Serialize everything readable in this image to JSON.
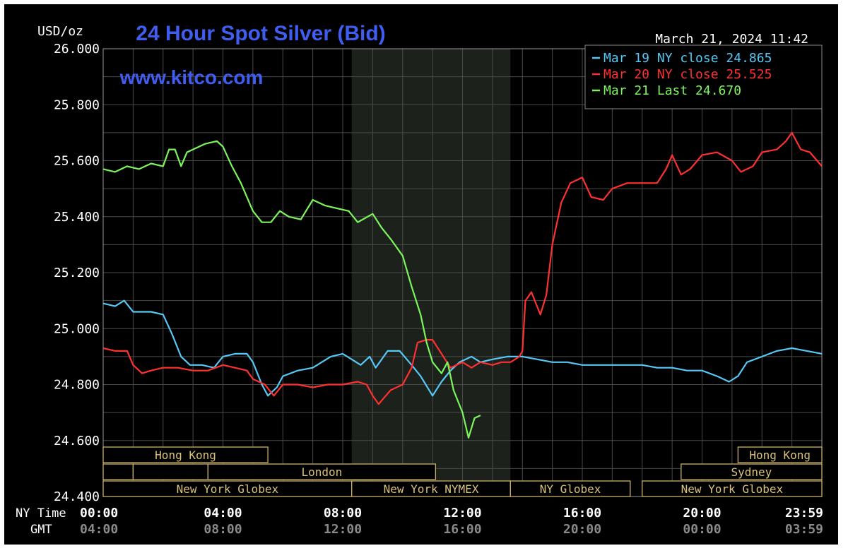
{
  "chart_data": {
    "type": "line",
    "title": "24 Hour Spot Silver (Bid)",
    "ylabel": "USD/oz",
    "timestamp": "March 21, 2024 11:42",
    "watermark": "www.kitco.com",
    "ylim": [
      24.4,
      26.0
    ],
    "xlim_hours": [
      0,
      24
    ],
    "grid": true,
    "legend_position": "top-right",
    "y_ticks": [
      {
        "value": 26.0,
        "label": "26.000"
      },
      {
        "value": 25.8,
        "label": "25.800"
      },
      {
        "value": 25.6,
        "label": "25.600"
      },
      {
        "value": 25.4,
        "label": "25.400"
      },
      {
        "value": 25.2,
        "label": "25.200"
      },
      {
        "value": 25.0,
        "label": "25.000"
      },
      {
        "value": 24.8,
        "label": "24.800"
      },
      {
        "value": 24.6,
        "label": "24.600"
      },
      {
        "value": 24.4,
        "label": "24.400"
      }
    ],
    "x_axis": {
      "row1_label": "NY Time",
      "row2_label": "GMT",
      "ticks": [
        {
          "h": 0,
          "ny": "00:00",
          "gmt": "04:00"
        },
        {
          "h": 4,
          "ny": "04:00",
          "gmt": "08:00"
        },
        {
          "h": 8,
          "ny": "08:00",
          "gmt": "12:00"
        },
        {
          "h": 12,
          "ny": "12:00",
          "gmt": "16:00"
        },
        {
          "h": 16,
          "ny": "16:00",
          "gmt": "20:00"
        },
        {
          "h": 20,
          "ny": "20:00",
          "gmt": "00:00"
        },
        {
          "h": 24,
          "ny": "23:59",
          "gmt": "03:59"
        }
      ]
    },
    "shaded_region_hours": [
      8.3,
      13.6
    ],
    "sessions": [
      {
        "label": "Hong Kong",
        "row": 0,
        "start": 0,
        "end": 5.5
      },
      {
        "label": "Hong Kong",
        "row": 0,
        "start": 21.2,
        "end": 24
      },
      {
        "label": "",
        "row": 1,
        "start": 0,
        "end": 1
      },
      {
        "label": "",
        "row": 1,
        "start": 1,
        "end": 3.5
      },
      {
        "label": "London",
        "row": 1,
        "start": 3.5,
        "end": 11.1
      },
      {
        "label": "Sydney",
        "row": 1,
        "start": 19.3,
        "end": 24
      },
      {
        "label": "New York Globex",
        "row": 2,
        "start": 0,
        "end": 8.3
      },
      {
        "label": "New York NYMEX",
        "row": 2,
        "start": 8.3,
        "end": 13.6
      },
      {
        "label": "NY Globex",
        "row": 2,
        "start": 13.6,
        "end": 17.6
      },
      {
        "label": "New York Globex",
        "row": 2,
        "start": 18.0,
        "end": 24
      }
    ],
    "series": [
      {
        "legend": "Mar 19 NY close 24.865",
        "color": "#55c8f5",
        "points": [
          [
            0,
            25.09
          ],
          [
            0.4,
            25.08
          ],
          [
            0.7,
            25.1
          ],
          [
            1.0,
            25.06
          ],
          [
            1.6,
            25.06
          ],
          [
            2.0,
            25.05
          ],
          [
            2.3,
            24.98
          ],
          [
            2.6,
            24.9
          ],
          [
            2.9,
            24.87
          ],
          [
            3.3,
            24.87
          ],
          [
            3.7,
            24.86
          ],
          [
            4.0,
            24.9
          ],
          [
            4.4,
            24.91
          ],
          [
            4.8,
            24.91
          ],
          [
            5.0,
            24.88
          ],
          [
            5.3,
            24.8
          ],
          [
            5.5,
            24.76
          ],
          [
            5.8,
            24.79
          ],
          [
            6.0,
            24.83
          ],
          [
            6.5,
            24.85
          ],
          [
            7.0,
            24.86
          ],
          [
            7.3,
            24.88
          ],
          [
            7.6,
            24.9
          ],
          [
            8.0,
            24.91
          ],
          [
            8.3,
            24.89
          ],
          [
            8.6,
            24.87
          ],
          [
            8.9,
            24.9
          ],
          [
            9.1,
            24.86
          ],
          [
            9.5,
            24.92
          ],
          [
            9.9,
            24.92
          ],
          [
            10.3,
            24.87
          ],
          [
            10.6,
            24.83
          ],
          [
            11.0,
            24.76
          ],
          [
            11.3,
            24.81
          ],
          [
            11.6,
            24.85
          ],
          [
            11.9,
            24.88
          ],
          [
            12.3,
            24.9
          ],
          [
            12.6,
            24.88
          ],
          [
            13.0,
            24.89
          ],
          [
            13.5,
            24.9
          ],
          [
            14.0,
            24.9
          ],
          [
            14.5,
            24.89
          ],
          [
            15.0,
            24.88
          ],
          [
            15.5,
            24.88
          ],
          [
            16.0,
            24.87
          ],
          [
            17.0,
            24.87
          ],
          [
            18.0,
            24.87
          ],
          [
            18.5,
            24.86
          ],
          [
            19.0,
            24.86
          ],
          [
            19.5,
            24.85
          ],
          [
            20.0,
            24.85
          ],
          [
            20.5,
            24.83
          ],
          [
            20.9,
            24.81
          ],
          [
            21.2,
            24.83
          ],
          [
            21.5,
            24.88
          ],
          [
            22.0,
            24.9
          ],
          [
            22.5,
            24.92
          ],
          [
            23.0,
            24.93
          ],
          [
            23.5,
            24.92
          ],
          [
            24.0,
            24.91
          ]
        ]
      },
      {
        "legend": "Mar 20 NY close 25.525",
        "color": "#ff3030",
        "points": [
          [
            0,
            24.93
          ],
          [
            0.4,
            24.92
          ],
          [
            0.8,
            24.92
          ],
          [
            1.0,
            24.87
          ],
          [
            1.3,
            24.84
          ],
          [
            1.6,
            24.85
          ],
          [
            2.0,
            24.86
          ],
          [
            2.5,
            24.86
          ],
          [
            3.0,
            24.85
          ],
          [
            3.5,
            24.85
          ],
          [
            4.0,
            24.87
          ],
          [
            4.4,
            24.86
          ],
          [
            4.8,
            24.85
          ],
          [
            5.0,
            24.82
          ],
          [
            5.4,
            24.8
          ],
          [
            5.7,
            24.76
          ],
          [
            6.0,
            24.8
          ],
          [
            6.5,
            24.8
          ],
          [
            7.0,
            24.79
          ],
          [
            7.5,
            24.8
          ],
          [
            8.0,
            24.8
          ],
          [
            8.5,
            24.81
          ],
          [
            8.8,
            24.8
          ],
          [
            9.0,
            24.76
          ],
          [
            9.2,
            24.73
          ],
          [
            9.6,
            24.78
          ],
          [
            10.0,
            24.8
          ],
          [
            10.3,
            24.86
          ],
          [
            10.5,
            24.95
          ],
          [
            10.8,
            24.96
          ],
          [
            11.0,
            24.96
          ],
          [
            11.3,
            24.91
          ],
          [
            11.6,
            24.86
          ],
          [
            12.0,
            24.88
          ],
          [
            12.3,
            24.86
          ],
          [
            12.6,
            24.88
          ],
          [
            13.0,
            24.87
          ],
          [
            13.3,
            24.88
          ],
          [
            13.6,
            24.88
          ],
          [
            13.9,
            24.9
          ],
          [
            14.0,
            24.92
          ],
          [
            14.1,
            25.1
          ],
          [
            14.3,
            25.13
          ],
          [
            14.6,
            25.05
          ],
          [
            14.8,
            25.12
          ],
          [
            15.0,
            25.3
          ],
          [
            15.3,
            25.45
          ],
          [
            15.6,
            25.52
          ],
          [
            16.0,
            25.54
          ],
          [
            16.3,
            25.47
          ],
          [
            16.7,
            25.46
          ],
          [
            17.0,
            25.5
          ],
          [
            17.5,
            25.52
          ],
          [
            18.0,
            25.52
          ],
          [
            18.5,
            25.52
          ],
          [
            18.8,
            25.57
          ],
          [
            19.0,
            25.62
          ],
          [
            19.3,
            25.55
          ],
          [
            19.6,
            25.57
          ],
          [
            20.0,
            25.62
          ],
          [
            20.5,
            25.63
          ],
          [
            21.0,
            25.6
          ],
          [
            21.3,
            25.56
          ],
          [
            21.7,
            25.58
          ],
          [
            22.0,
            25.63
          ],
          [
            22.5,
            25.64
          ],
          [
            22.8,
            25.67
          ],
          [
            23.0,
            25.7
          ],
          [
            23.3,
            25.64
          ],
          [
            23.6,
            25.63
          ],
          [
            24.0,
            25.58
          ]
        ]
      },
      {
        "legend": "Mar 21 Last 24.670",
        "color": "#7cf55c",
        "points": [
          [
            0,
            25.57
          ],
          [
            0.4,
            25.56
          ],
          [
            0.8,
            25.58
          ],
          [
            1.2,
            25.57
          ],
          [
            1.6,
            25.59
          ],
          [
            2.0,
            25.58
          ],
          [
            2.2,
            25.64
          ],
          [
            2.4,
            25.64
          ],
          [
            2.6,
            25.58
          ],
          [
            2.8,
            25.63
          ],
          [
            3.0,
            25.64
          ],
          [
            3.4,
            25.66
          ],
          [
            3.8,
            25.67
          ],
          [
            4.0,
            25.65
          ],
          [
            4.3,
            25.58
          ],
          [
            4.6,
            25.52
          ],
          [
            5.0,
            25.42
          ],
          [
            5.3,
            25.38
          ],
          [
            5.6,
            25.38
          ],
          [
            5.9,
            25.42
          ],
          [
            6.2,
            25.4
          ],
          [
            6.6,
            25.39
          ],
          [
            7.0,
            25.46
          ],
          [
            7.4,
            25.44
          ],
          [
            7.8,
            25.43
          ],
          [
            8.2,
            25.42
          ],
          [
            8.5,
            25.38
          ],
          [
            9.0,
            25.41
          ],
          [
            9.3,
            25.36
          ],
          [
            9.6,
            25.32
          ],
          [
            10.0,
            25.26
          ],
          [
            10.3,
            25.15
          ],
          [
            10.6,
            25.05
          ],
          [
            10.8,
            24.95
          ],
          [
            11.0,
            24.88
          ],
          [
            11.3,
            24.84
          ],
          [
            11.5,
            24.88
          ],
          [
            11.7,
            24.78
          ],
          [
            12.0,
            24.7
          ],
          [
            12.2,
            24.61
          ],
          [
            12.4,
            24.68
          ],
          [
            12.6,
            24.69
          ]
        ]
      }
    ]
  }
}
